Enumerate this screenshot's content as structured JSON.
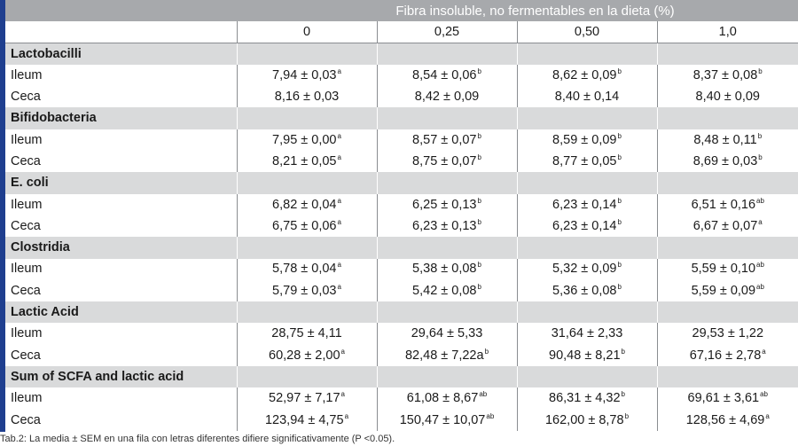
{
  "header": {
    "title": "Fibra insoluble, no fermentables en la dieta (%)",
    "levels": [
      "0",
      "0,25",
      "0,50",
      "1,0"
    ]
  },
  "groups": [
    {
      "name": "Lactobacilli",
      "rows": [
        {
          "label": "Ileum",
          "cells": [
            {
              "v": "7,94 ± 0,03",
              "s": "a"
            },
            {
              "v": "8,54 ± 0,06",
              "s": "b"
            },
            {
              "v": "8,62 ± 0,09",
              "s": "b"
            },
            {
              "v": "8,37 ± 0,08",
              "s": "b"
            }
          ]
        },
        {
          "label": "Ceca",
          "cells": [
            {
              "v": "8,16 ± 0,03",
              "s": ""
            },
            {
              "v": "8,42 ± 0,09",
              "s": ""
            },
            {
              "v": "8,40 ± 0,14",
              "s": ""
            },
            {
              "v": "8,40 ± 0,09",
              "s": ""
            }
          ]
        }
      ]
    },
    {
      "name": "Bifidobacteria",
      "rows": [
        {
          "label": "Ileum",
          "cells": [
            {
              "v": "7,95 ± 0,00",
              "s": "a"
            },
            {
              "v": "8,57 ± 0,07",
              "s": "b"
            },
            {
              "v": "8,59 ± 0,09",
              "s": "b"
            },
            {
              "v": "8,48 ± 0,11",
              "s": "b"
            }
          ]
        },
        {
          "label": "Ceca",
          "cells": [
            {
              "v": "8,21 ± 0,05",
              "s": "a"
            },
            {
              "v": "8,75 ± 0,07",
              "s": "b"
            },
            {
              "v": "8,77 ± 0,05",
              "s": "b"
            },
            {
              "v": "8,69 ± 0,03",
              "s": "b"
            }
          ]
        }
      ]
    },
    {
      "name": "E. coli",
      "rows": [
        {
          "label": "Ileum",
          "cells": [
            {
              "v": "6,82 ± 0,04",
              "s": "a"
            },
            {
              "v": "6,25 ± 0,13",
              "s": "b"
            },
            {
              "v": "6,23 ± 0,14",
              "s": "b"
            },
            {
              "v": "6,51 ± 0,16",
              "s": "ab"
            }
          ]
        },
        {
          "label": "Ceca",
          "cells": [
            {
              "v": "6,75 ± 0,06",
              "s": "a"
            },
            {
              "v": "6,23 ± 0,13",
              "s": "b"
            },
            {
              "v": "6,23 ± 0,14",
              "s": "b"
            },
            {
              "v": "6,67 ± 0,07",
              "s": "a"
            }
          ]
        }
      ]
    },
    {
      "name": "Clostridia",
      "rows": [
        {
          "label": "Ileum",
          "cells": [
            {
              "v": "5,78 ± 0,04",
              "s": "a"
            },
            {
              "v": "5,38 ± 0,08",
              "s": "b"
            },
            {
              "v": "5,32 ± 0,09",
              "s": "b"
            },
            {
              "v": "5,59 ± 0,10",
              "s": "ab"
            }
          ]
        },
        {
          "label": "Ceca",
          "cells": [
            {
              "v": "5,79 ± 0,03",
              "s": "a"
            },
            {
              "v": "5,42 ± 0,08",
              "s": "b"
            },
            {
              "v": "5,36 ± 0,08",
              "s": "b"
            },
            {
              "v": "5,59 ± 0,09",
              "s": "ab"
            }
          ]
        }
      ]
    },
    {
      "name": "Lactic Acid",
      "rows": [
        {
          "label": "Ileum",
          "cells": [
            {
              "v": "28,75 ± 4,11",
              "s": ""
            },
            {
              "v": "29,64 ± 5,33",
              "s": ""
            },
            {
              "v": "31,64 ± 2,33",
              "s": ""
            },
            {
              "v": "29,53 ± 1,22",
              "s": ""
            }
          ]
        },
        {
          "label": "Ceca",
          "cells": [
            {
              "v": "60,28 ± 2,00",
              "s": "a"
            },
            {
              "v": "82,48 ± 7,22a",
              "s": "b"
            },
            {
              "v": "90,48 ± 8,21",
              "s": "b"
            },
            {
              "v": "67,16 ± 2,78",
              "s": "a"
            }
          ]
        }
      ]
    },
    {
      "name": "Sum of SCFA and lactic acid",
      "rows": [
        {
          "label": "Ileum",
          "cells": [
            {
              "v": "52,97 ± 7,17",
              "s": "a"
            },
            {
              "v": "61,08 ± 8,67",
              "s": "ab"
            },
            {
              "v": "86,31 ± 4,32",
              "s": "b"
            },
            {
              "v": "69,61 ± 3,61",
              "s": "ab"
            }
          ]
        },
        {
          "label": "Ceca",
          "cells": [
            {
              "v": "123,94 ± 4,75",
              "s": "a"
            },
            {
              "v": "150,47 ± 10,07",
              "s": "ab"
            },
            {
              "v": "162,00 ± 8,78",
              "s": "b"
            },
            {
              "v": "128,56 ± 4,69",
              "s": "a"
            }
          ]
        }
      ]
    }
  ],
  "caption": "Tab.2: La media ± SEM en una fila con letras diferentes difiere significativamente (P <0.05)."
}
